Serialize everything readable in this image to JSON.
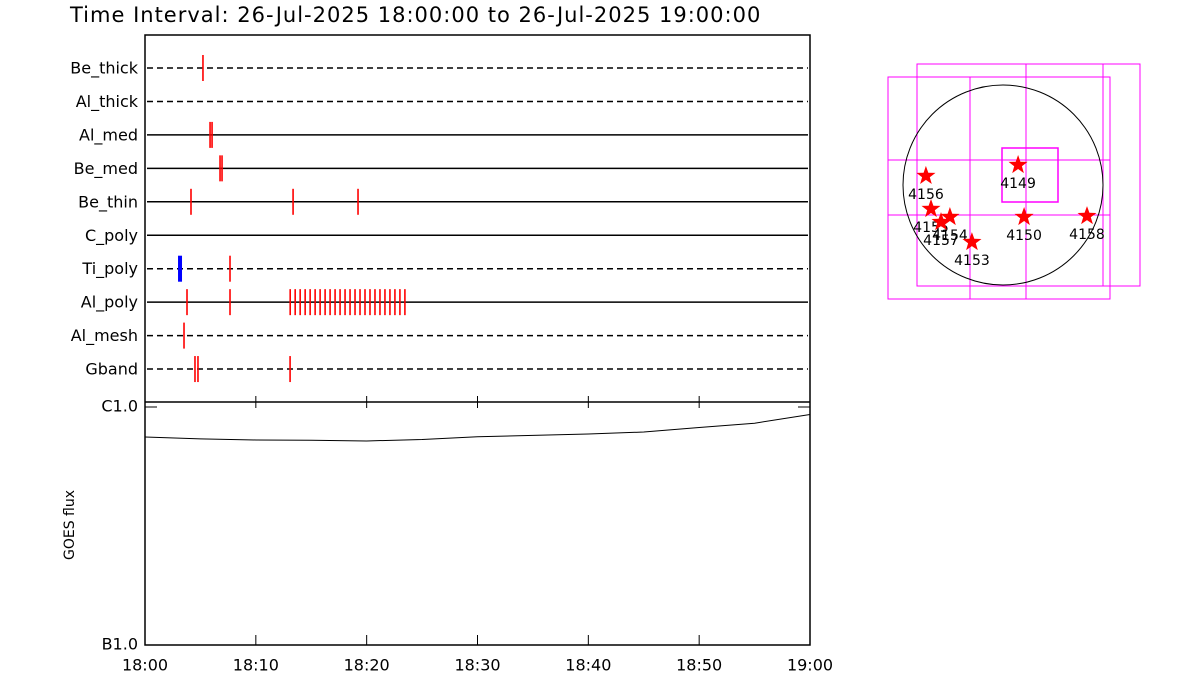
{
  "chart_data": [
    {
      "type": "timeline",
      "title": "Time Interval: 26-Jul-2025 18:00:00 to 26-Jul-2025 19:00:00",
      "color": "#ff0000",
      "xlim": [
        0,
        60
      ],
      "series": [
        {
          "name": "Be_thick",
          "line": "dashed",
          "values": [
            5.23
          ]
        },
        {
          "name": "Al_thick",
          "line": "dashed",
          "values": []
        },
        {
          "name": "Al_med",
          "line": "solid",
          "values": [
            5.87,
            6.05
          ]
        },
        {
          "name": "Be_med",
          "line": "solid",
          "values": [
            6.77,
            6.95
          ]
        },
        {
          "name": "Be_thin",
          "line": "solid",
          "values": [
            4.15,
            13.36,
            19.22
          ]
        },
        {
          "name": "C_poly",
          "line": "solid",
          "values": []
        },
        {
          "name": "Ti_poly",
          "line": "dashed",
          "values": [
            3.16,
            7.67
          ],
          "colors": [
            "#0000ff",
            "#ff0000"
          ]
        },
        {
          "name": "Al_poly",
          "line": "solid",
          "values": [
            3.79,
            7.67,
            13.1,
            13.55,
            14.0,
            14.45,
            14.9,
            15.35,
            15.8,
            16.25,
            16.7,
            17.15,
            17.6,
            18.05,
            18.5,
            18.95,
            19.4,
            19.85,
            20.3,
            20.75,
            21.2,
            21.65,
            22.1,
            22.55,
            23.0,
            23.45
          ]
        },
        {
          "name": "Al_mesh",
          "line": "dashed",
          "values": [
            3.52
          ]
        },
        {
          "name": "Gband",
          "line": "dashed",
          "values": [
            4.51,
            4.78,
            13.09
          ]
        }
      ]
    },
    {
      "type": "line",
      "ylabel": "GOES flux",
      "color": "#000000",
      "log": true,
      "x": [
        0,
        5,
        10,
        15,
        20,
        25,
        30,
        35,
        40,
        45,
        50,
        55,
        60
      ],
      "values": [
        7.48e-07,
        7.35e-07,
        7.27e-07,
        7.25e-07,
        7.2e-07,
        7.3e-07,
        7.5e-07,
        7.6e-07,
        7.7e-07,
        7.85e-07,
        8.2e-07,
        8.55e-07,
        9.3e-07
      ],
      "xlim": [
        0,
        60
      ],
      "xticks": [
        {
          "value": 0,
          "label": "18:00"
        },
        {
          "value": 10,
          "label": "18:10"
        },
        {
          "value": 20,
          "label": "18:20"
        },
        {
          "value": 30,
          "label": "18:30"
        },
        {
          "value": 40,
          "label": "18:40"
        },
        {
          "value": 50,
          "label": "18:50"
        },
        {
          "value": 60,
          "label": "19:00"
        }
      ],
      "ylim": [
        1e-07,
        1e-06
      ],
      "yticks": [
        {
          "value": 1e-07,
          "label": "B1.0"
        },
        {
          "value": 1e-06,
          "label": "C1.0"
        }
      ]
    },
    {
      "type": "scatter",
      "color": "#ff0000",
      "labels": [
        "4149",
        "4156",
        "4155",
        "4154",
        "4157",
        "4153",
        "4150",
        "4158"
      ],
      "x": [
        143,
        -732,
        -684,
        -504,
        -589,
        -295,
        200,
        798
      ],
      "y": [
        190,
        86,
        -228,
        -304,
        -352,
        -542,
        -304,
        -295
      ]
    }
  ]
}
